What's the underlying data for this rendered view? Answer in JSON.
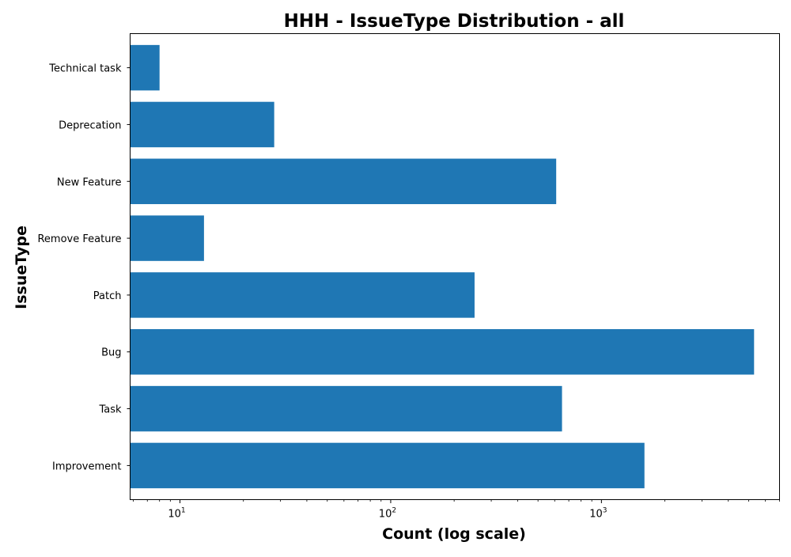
{
  "chart_data": {
    "type": "bar",
    "orientation": "horizontal",
    "title": "HHH - IssueType Distribution - all",
    "xlabel": "Count (log scale)",
    "ylabel": "IssueType",
    "x_scale": "log",
    "xlim": [
      5.8,
      7000
    ],
    "categories": [
      "Improvement",
      "Task",
      "Bug",
      "Patch",
      "Remove Feature",
      "New Feature",
      "Deprecation",
      "Technical task"
    ],
    "values": [
      1600,
      650,
      5300,
      250,
      13,
      610,
      28,
      8
    ],
    "x_major_ticks": [
      {
        "value": 10,
        "base": "10",
        "exponent": "1"
      },
      {
        "value": 100,
        "base": "10",
        "exponent": "2"
      },
      {
        "value": 1000,
        "base": "10",
        "exponent": "3"
      }
    ],
    "bar_color": "#1f77b4",
    "grid": false,
    "legend": "none"
  }
}
